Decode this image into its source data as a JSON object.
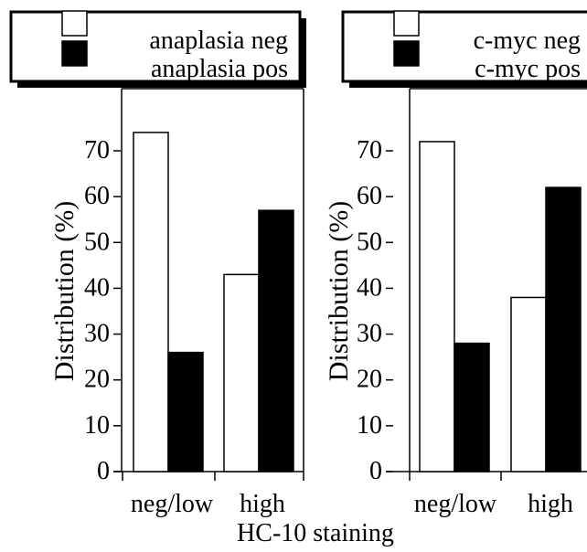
{
  "chart_data": [
    {
      "type": "bar",
      "categories": [
        "neg/low",
        "high"
      ],
      "series": [
        {
          "name": "anaplasia neg",
          "values": [
            74,
            43
          ],
          "fill": "#ffffff"
        },
        {
          "name": "anaplasia pos",
          "values": [
            26,
            57
          ],
          "fill": "#000000"
        }
      ],
      "ylabel": "Distribution (%)",
      "ylim": [
        0,
        70
      ],
      "yticks": [
        0,
        10,
        20,
        30,
        40,
        50,
        60,
        70
      ],
      "grid": false,
      "legend_position": "top"
    },
    {
      "type": "bar",
      "categories": [
        "neg/low",
        "high"
      ],
      "series": [
        {
          "name": "c-myc neg",
          "values": [
            72,
            38
          ],
          "fill": "#ffffff"
        },
        {
          "name": "c-myc pos",
          "values": [
            28,
            62
          ],
          "fill": "#000000"
        }
      ],
      "ylabel": "Distribution (%)",
      "ylim": [
        0,
        70
      ],
      "yticks": [
        0,
        10,
        20,
        30,
        40,
        50,
        60,
        70
      ],
      "grid": false,
      "legend_position": "top"
    }
  ],
  "shared_xlabel": "HC-10 staining"
}
